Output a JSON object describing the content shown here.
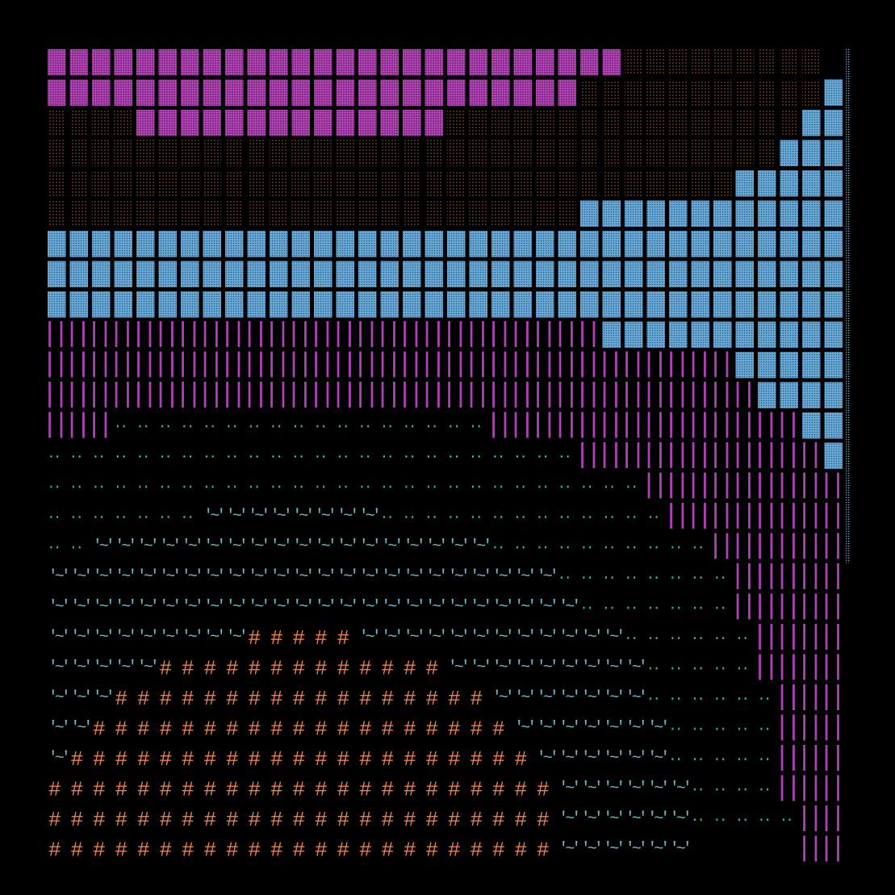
{
  "glyphs": {
    "hash": "#",
    "wave": "'~'",
    "dots": "..",
    "bars": "||"
  }
}
